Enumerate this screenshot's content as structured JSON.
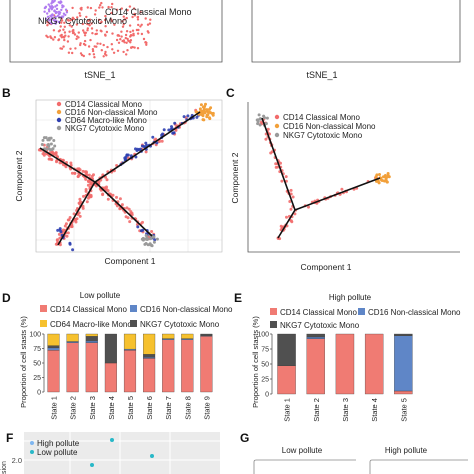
{
  "panels": {
    "B": "B",
    "C": "C",
    "D": "D",
    "E": "E",
    "F": "F",
    "G": "G"
  },
  "colors": {
    "cd14": "#f26b6b",
    "cd16": "#f2a03a",
    "cd64": "#2e3fb0",
    "nkg7": "#9a9a9a",
    "nkg7_tsne": "#b07cf0",
    "bar_cd14": "#f07b73",
    "bar_cd16": "#5f86c7",
    "bar_cd64": "#f6c12e",
    "bar_nkg7": "#505050",
    "f_high": "#7fb6f0",
    "f_low": "#28b8c8"
  },
  "tsne": {
    "xlabel_left": "tSNE_1",
    "xlabel_right": "tSNE_1",
    "label_cd14": "CD14 Classical Mono",
    "label_nkg7": "NKG7 Cytotoxic Mono"
  },
  "chart_data": [
    {
      "panel": "B",
      "type": "scatter",
      "xlabel": "Component 1",
      "ylabel": "Component 2",
      "legend": [
        "CD14 Classical Mono",
        "CD16 Non-classical Mono",
        "CD64 Macro-like Mono",
        "NKG7 Cytotoxic Mono"
      ],
      "legend_position": "top-left",
      "grid": true
    },
    {
      "panel": "C",
      "type": "scatter",
      "xlabel": "Component 1",
      "ylabel": "Component 2",
      "legend": [
        "CD14 Classical Mono",
        "CD16 Non-classical Mono",
        "NKG7 Cytotoxic Mono"
      ],
      "legend_position": "top-left",
      "grid": false
    },
    {
      "panel": "D",
      "type": "bar",
      "stacked": true,
      "title": "Low pollute",
      "ylabel": "Proportion of cell stasts (%)",
      "yticks": [
        "0",
        "25",
        "50",
        "75",
        "100"
      ],
      "ylim": [
        0,
        100
      ],
      "categories": [
        "State 1",
        "State 2",
        "State 3",
        "State 4",
        "State 5",
        "State 6",
        "State 7",
        "State 8",
        "State 9"
      ],
      "legend": [
        "CD14 Classical Mono",
        "CD16 Non-classical Mono",
        "CD64 Macro-like Mono",
        "NKG7 Cytotoxic Mono"
      ],
      "series": [
        {
          "key": "cd14",
          "values": [
            72,
            85,
            85,
            50,
            72,
            58,
            90,
            90,
            96
          ]
        },
        {
          "key": "cd16",
          "values": [
            4,
            2,
            3,
            0,
            2,
            2,
            2,
            2,
            1
          ]
        },
        {
          "key": "nkg7",
          "values": [
            4,
            0,
            8,
            50,
            0,
            5,
            0,
            0,
            3
          ]
        },
        {
          "key": "cd64",
          "values": [
            20,
            13,
            4,
            0,
            26,
            35,
            8,
            8,
            0
          ]
        }
      ]
    },
    {
      "panel": "E",
      "type": "bar",
      "stacked": true,
      "title": "High pollute",
      "ylabel": "Proportion of cell stasts (%)",
      "yticks": [
        "0",
        "25",
        "50",
        "75",
        "100"
      ],
      "ylim": [
        0,
        100
      ],
      "categories": [
        "State 1",
        "State 2",
        "State 3",
        "State 4",
        "State 5"
      ],
      "legend": [
        "CD14 Classical Mono",
        "CD16 Non-classical Mono",
        "NKG7 Cytotoxic Mono"
      ],
      "series": [
        {
          "key": "cd14",
          "values": [
            47,
            92,
            100,
            100,
            5
          ]
        },
        {
          "key": "cd16",
          "values": [
            0,
            3,
            0,
            0,
            92
          ]
        },
        {
          "key": "nkg7",
          "values": [
            53,
            5,
            0,
            0,
            3
          ]
        }
      ]
    },
    {
      "panel": "F",
      "type": "scatter",
      "ytick": "2.0",
      "ylabel_fragment": "sion",
      "legend": [
        "High pollute",
        "Low pollute"
      ],
      "legend_position": "top-left",
      "grid": true
    },
    {
      "panel": "G",
      "type": "table",
      "titles": [
        "Low pollute",
        "High pollute"
      ]
    }
  ]
}
